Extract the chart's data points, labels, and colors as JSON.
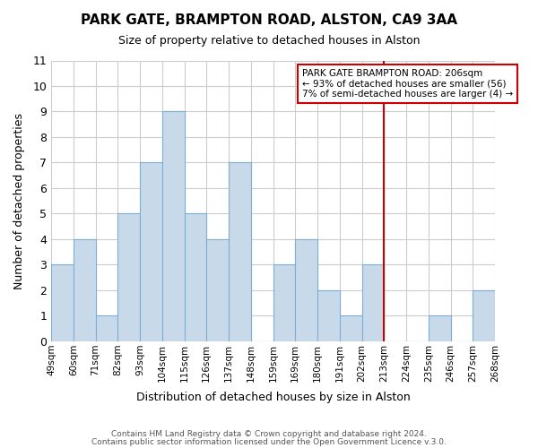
{
  "title": "PARK GATE, BRAMPTON ROAD, ALSTON, CA9 3AA",
  "subtitle": "Size of property relative to detached houses in Alston",
  "xlabel": "Distribution of detached houses by size in Alston",
  "ylabel": "Number of detached properties",
  "footer_line1": "Contains HM Land Registry data © Crown copyright and database right 2024.",
  "footer_line2": "Contains public sector information licensed under the Open Government Licence v.3.0.",
  "bin_labels": [
    "49sqm",
    "60sqm",
    "71sqm",
    "82sqm",
    "93sqm",
    "104sqm",
    "115sqm",
    "126sqm",
    "137sqm",
    "148sqm",
    "159sqm",
    "169sqm",
    "180sqm",
    "191sqm",
    "202sqm",
    "213sqm",
    "224sqm",
    "235sqm",
    "246sqm",
    "257sqm",
    "268sqm"
  ],
  "bar_values": [
    3,
    4,
    1,
    5,
    7,
    9,
    5,
    4,
    7,
    0,
    3,
    4,
    2,
    1,
    3,
    0,
    0,
    1,
    0,
    2
  ],
  "bar_color": "#c8daea",
  "bar_edge_color": "#7bafd4",
  "grid_color": "#cccccc",
  "vline_x": 14.5,
  "vline_color": "#cc0000",
  "annotation_box_text": "PARK GATE BRAMPTON ROAD: 206sqm\n← 93% of detached houses are smaller (56)\n7% of semi-detached houses are larger (4) →",
  "annotation_box_color": "#ffffff",
  "annotation_box_edge_color": "#cc0000",
  "ylim": [
    0,
    11
  ],
  "yticks": [
    0,
    1,
    2,
    3,
    4,
    5,
    6,
    7,
    8,
    9,
    10,
    11
  ]
}
